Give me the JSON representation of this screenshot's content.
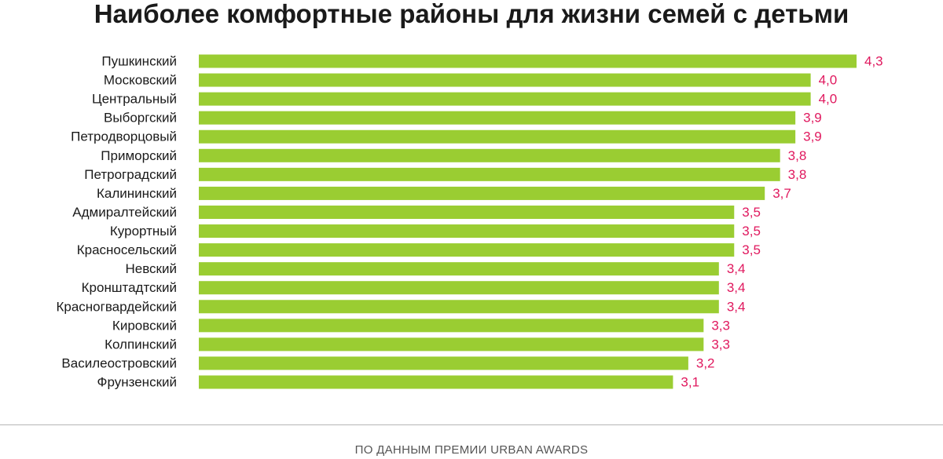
{
  "chart_data": {
    "type": "bar",
    "orientation": "horizontal",
    "title": "Наиболее комфортные районы для жизни семей с детьми",
    "categories": [
      "Пушкинский",
      "Московский",
      "Центральный",
      "Выборгский",
      "Петродворцовый",
      "Приморский",
      "Петроградский",
      "Калининский",
      "Адмиралтейский",
      "Курортный",
      "Красносельский",
      "Невский",
      "Кронштадтский",
      "Красногвардейский",
      "Кировский",
      "Колпинский",
      "Василеостровский",
      "Фрунзенский"
    ],
    "values": [
      4.3,
      4.0,
      4.0,
      3.9,
      3.9,
      3.8,
      3.8,
      3.7,
      3.5,
      3.5,
      3.5,
      3.4,
      3.4,
      3.4,
      3.3,
      3.3,
      3.2,
      3.1
    ],
    "value_labels": [
      "4,3",
      "4,0",
      "4,0",
      "3,9",
      "3,9",
      "3,8",
      "3,8",
      "3,7",
      "3,5",
      "3,5",
      "3,5",
      "3,4",
      "3,4",
      "3,4",
      "3,3",
      "3,3",
      "3,2",
      "3,1"
    ],
    "bar_color": "#9acd32",
    "label_color": "#e0185e",
    "grid": false,
    "legend": "none"
  },
  "footer": {
    "source": "ПО ДАННЫМ ПРЕМИИ URBAN AWARDS"
  }
}
